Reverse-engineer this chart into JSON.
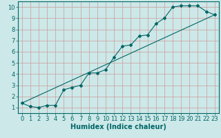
{
  "title": "",
  "xlabel": "Humidex (Indice chaleur)",
  "ylabel": "",
  "bg_color": "#cce8e8",
  "grid_color": "#cc9999",
  "line_color": "#006666",
  "xlim": [
    -0.5,
    23.5
  ],
  "ylim": [
    0.5,
    10.5
  ],
  "xticks": [
    0,
    1,
    2,
    3,
    4,
    5,
    6,
    7,
    8,
    9,
    10,
    11,
    12,
    13,
    14,
    15,
    16,
    17,
    18,
    19,
    20,
    21,
    22,
    23
  ],
  "yticks": [
    1,
    2,
    3,
    4,
    5,
    6,
    7,
    8,
    9,
    10
  ],
  "line1_x": [
    0,
    1,
    2,
    3,
    4,
    5,
    6,
    7,
    8,
    9,
    10,
    11,
    12,
    13,
    14,
    15,
    16,
    17,
    18,
    19,
    20,
    21,
    22,
    23
  ],
  "line1_y": [
    1.4,
    1.1,
    1.0,
    1.2,
    1.2,
    2.6,
    2.8,
    3.0,
    4.1,
    4.1,
    4.4,
    5.5,
    6.5,
    6.6,
    7.4,
    7.5,
    8.5,
    9.0,
    10.0,
    10.1,
    10.1,
    10.1,
    9.6,
    9.3
  ],
  "line2_x": [
    0,
    23
  ],
  "line2_y": [
    1.4,
    9.3
  ],
  "font_size": 6
}
